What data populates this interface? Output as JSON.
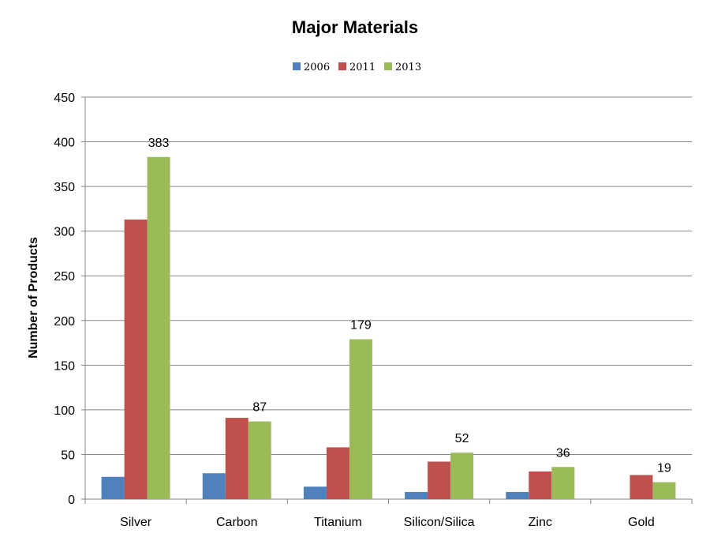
{
  "chart_data": {
    "type": "bar",
    "title": "Major Materials",
    "ylabel": "Number of Products",
    "xlabel": "",
    "ylim": [
      0,
      450
    ],
    "yticks": [
      0,
      50,
      100,
      150,
      200,
      250,
      300,
      350,
      400,
      450
    ],
    "grid": true,
    "legend_position": "top-center",
    "categories": [
      "Silver",
      "Carbon",
      "Titanium",
      "Silicon/Silica",
      "Zinc",
      "Gold"
    ],
    "series": [
      {
        "name": "2006",
        "color": "#4F81BD",
        "values": [
          25,
          29,
          14,
          8,
          8,
          0
        ]
      },
      {
        "name": "2011",
        "color": "#C0504D",
        "values": [
          313,
          91,
          58,
          42,
          31,
          27
        ]
      },
      {
        "name": "2013",
        "color": "#9BBB59",
        "values": [
          383,
          87,
          179,
          52,
          36,
          19
        ]
      }
    ],
    "data_labels": {
      "series": "2013",
      "values": [
        "383",
        "87",
        "179",
        "52",
        "36",
        "19"
      ]
    }
  }
}
